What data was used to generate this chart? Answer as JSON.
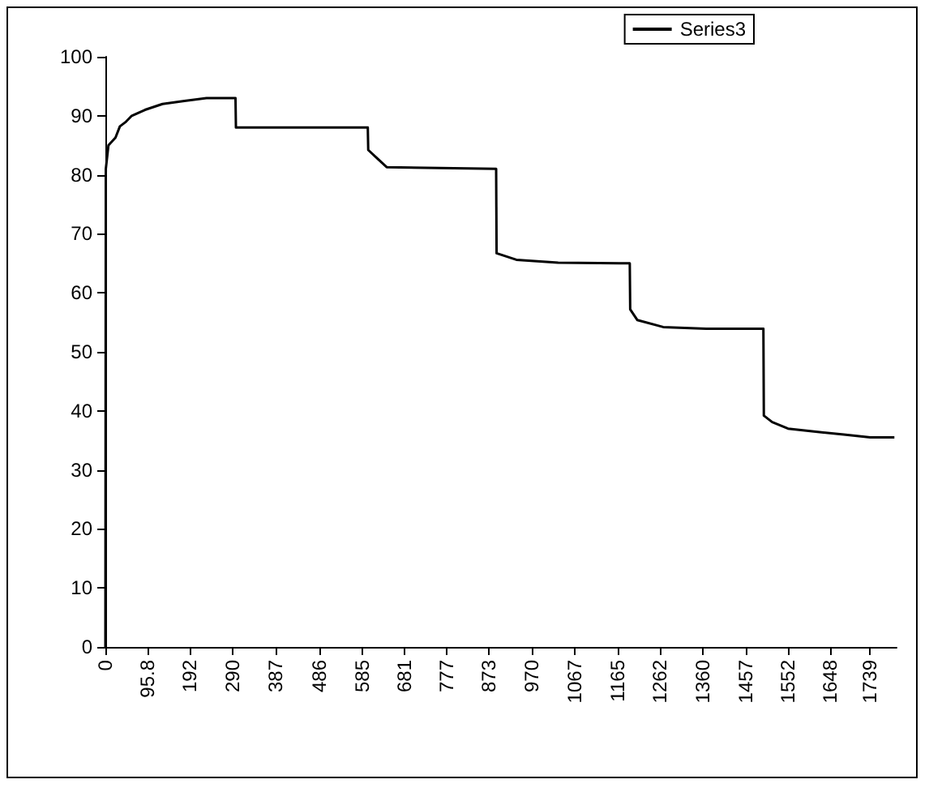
{
  "chart_data": {
    "type": "line",
    "legend": "top right",
    "grid": false,
    "marker": "none",
    "line_style": "solid",
    "xlim": [
      0,
      1800
    ],
    "ylim": [
      0,
      100
    ],
    "xticks": [
      0,
      {
        "value": 95.8,
        "label": "95.8"
      },
      192,
      290,
      387,
      486,
      585,
      681,
      777,
      873,
      970,
      1067,
      1165,
      1262,
      1360,
      1457,
      1552,
      1648,
      1739
    ],
    "yticks": [
      0,
      10,
      20,
      30,
      40,
      50,
      60,
      70,
      80,
      90,
      100
    ],
    "series": [
      {
        "name": "Series3",
        "color": "#000000",
        "x": [
          0,
          1,
          7,
          23,
          33,
          47,
          60,
          90,
          130,
          180,
          230,
          296,
          297,
          597,
          598,
          618,
          640,
          889,
          890,
          935,
          1030,
          1193,
          1194,
          1210,
          1269,
          1367,
          1497,
          1498,
          1517,
          1553,
          1612,
          1680,
          1740,
          1795
        ],
        "values": [
          0,
          81,
          85,
          86.3,
          88.2,
          89,
          90,
          91,
          92,
          92.5,
          93,
          93,
          88,
          88,
          84.2,
          82.8,
          81.3,
          81,
          66.7,
          65.6,
          65.1,
          65,
          57.2,
          55.4,
          54.2,
          53.9,
          53.9,
          39.2,
          38.1,
          37,
          36.5,
          36,
          35.5,
          35.5
        ]
      }
    ]
  }
}
